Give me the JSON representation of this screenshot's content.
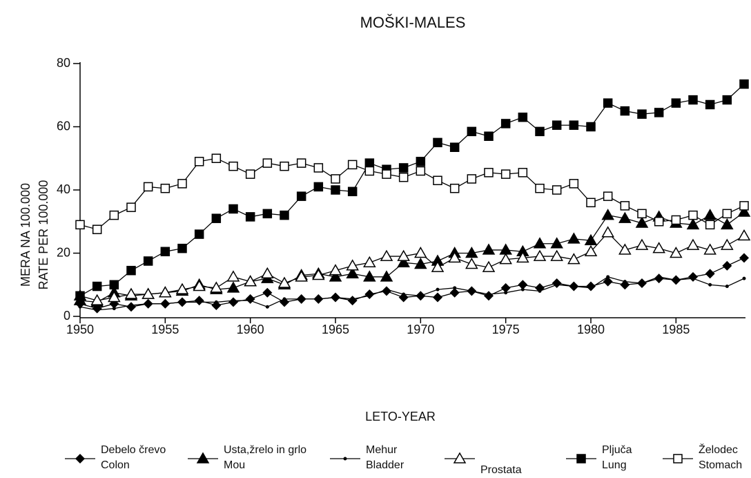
{
  "chart_data": {
    "type": "line",
    "title": "MOŠKI-MALES",
    "xlabel": "LETO-YEAR",
    "ylabel": [
      "MERA NA 100.000",
      "RATE PER 100.000"
    ],
    "x": [
      1950,
      1951,
      1952,
      1953,
      1954,
      1955,
      1956,
      1957,
      1958,
      1959,
      1960,
      1961,
      1962,
      1963,
      1964,
      1965,
      1966,
      1967,
      1968,
      1969,
      1970,
      1971,
      1972,
      1973,
      1974,
      1975,
      1976,
      1977,
      1978,
      1979,
      1980,
      1981,
      1982,
      1983,
      1984,
      1985,
      1986,
      1987,
      1988,
      1989
    ],
    "xlim": [
      1950,
      1989
    ],
    "xticks": [
      1950,
      1955,
      1960,
      1965,
      1970,
      1975,
      1980,
      1985
    ],
    "ylim": [
      0,
      80
    ],
    "yticks": [
      0,
      20,
      40,
      60,
      80
    ],
    "series": [
      {
        "name": "Debelo črevo\nColon",
        "color": "#000000",
        "marker": "diamond",
        "values": [
          4,
          2.5,
          4,
          3,
          4,
          4,
          4.5,
          5,
          3.5,
          4.5,
          5.5,
          7.5,
          4.5,
          5.5,
          5.5,
          6,
          5,
          7,
          8,
          6,
          6.5,
          6,
          7.5,
          8,
          6.5,
          9,
          10,
          9,
          10.5,
          9.5,
          9.5,
          11,
          10,
          10.5,
          12,
          11.5,
          12.5,
          13.5,
          16,
          18.5
        ]
      },
      {
        "name": "Usta,žrelo in grlo\nMou",
        "color": "#000000",
        "marker": "triangle",
        "values": [
          5,
          4.5,
          7.5,
          6.5,
          7,
          7.5,
          8,
          10,
          8.5,
          9,
          11,
          12,
          10,
          13,
          13.5,
          12.5,
          13.5,
          12.5,
          12.5,
          17,
          16.5,
          17.5,
          20,
          20,
          21,
          21,
          20.5,
          23,
          23,
          24.5,
          24,
          32,
          31,
          29.5,
          31.5,
          29.5,
          29,
          32,
          29,
          33
        ]
      },
      {
        "name": "Mehur\nBladder",
        "color": "#000000",
        "marker": "dot",
        "values": [
          3,
          2,
          2.5,
          3.5,
          4,
          4,
          4.5,
          4.5,
          4.5,
          5,
          5,
          3,
          5.5,
          5.5,
          5.5,
          6,
          5.5,
          6.5,
          8.5,
          7,
          6.5,
          8.5,
          9,
          8,
          7,
          7.5,
          8.5,
          8,
          10,
          9.5,
          9,
          12.5,
          11,
          10.5,
          12.5,
          11.5,
          12,
          10,
          9.5,
          12
        ]
      },
      {
        "name": "Prostata",
        "color": "#000000",
        "marker": "triangle-open",
        "values": [
          6.5,
          5,
          6,
          7,
          7,
          7.5,
          8.5,
          9.5,
          9,
          12.5,
          11,
          13.5,
          10.5,
          12.5,
          13,
          14.5,
          16,
          17,
          19,
          19,
          20,
          15.5,
          18.5,
          16.5,
          15.5,
          18,
          18.5,
          19,
          19,
          18,
          20.5,
          26.5,
          21,
          22.5,
          21.5,
          20,
          22.5,
          21,
          22.5,
          25.5
        ]
      },
      {
        "name": "Pljuča\nLung",
        "color": "#000000",
        "marker": "square",
        "values": [
          6.5,
          9.5,
          10,
          14.5,
          17.5,
          20.5,
          21.5,
          26,
          31,
          34,
          31.5,
          32.5,
          32,
          38,
          41,
          40,
          39.5,
          48.5,
          46.5,
          47,
          49,
          55,
          53.5,
          58.5,
          57,
          61,
          63,
          58.5,
          60.5,
          60.5,
          60,
          67.5,
          65,
          64,
          64.5,
          67.5,
          68.5,
          67,
          68.5,
          73.5
        ]
      },
      {
        "name": "Želodec\nStomach",
        "color": "#000000",
        "marker": "square-open",
        "values": [
          29,
          27.5,
          32,
          34.5,
          41,
          40.5,
          42,
          49,
          50,
          47.5,
          45,
          48.5,
          47.5,
          48.5,
          47,
          43.5,
          48,
          46,
          45,
          44,
          46,
          43,
          40.5,
          43.5,
          45.5,
          45,
          45.5,
          40.5,
          40,
          42,
          36,
          38,
          35,
          32.5,
          30,
          30.5,
          32,
          29,
          32.5,
          35
        ]
      }
    ]
  }
}
